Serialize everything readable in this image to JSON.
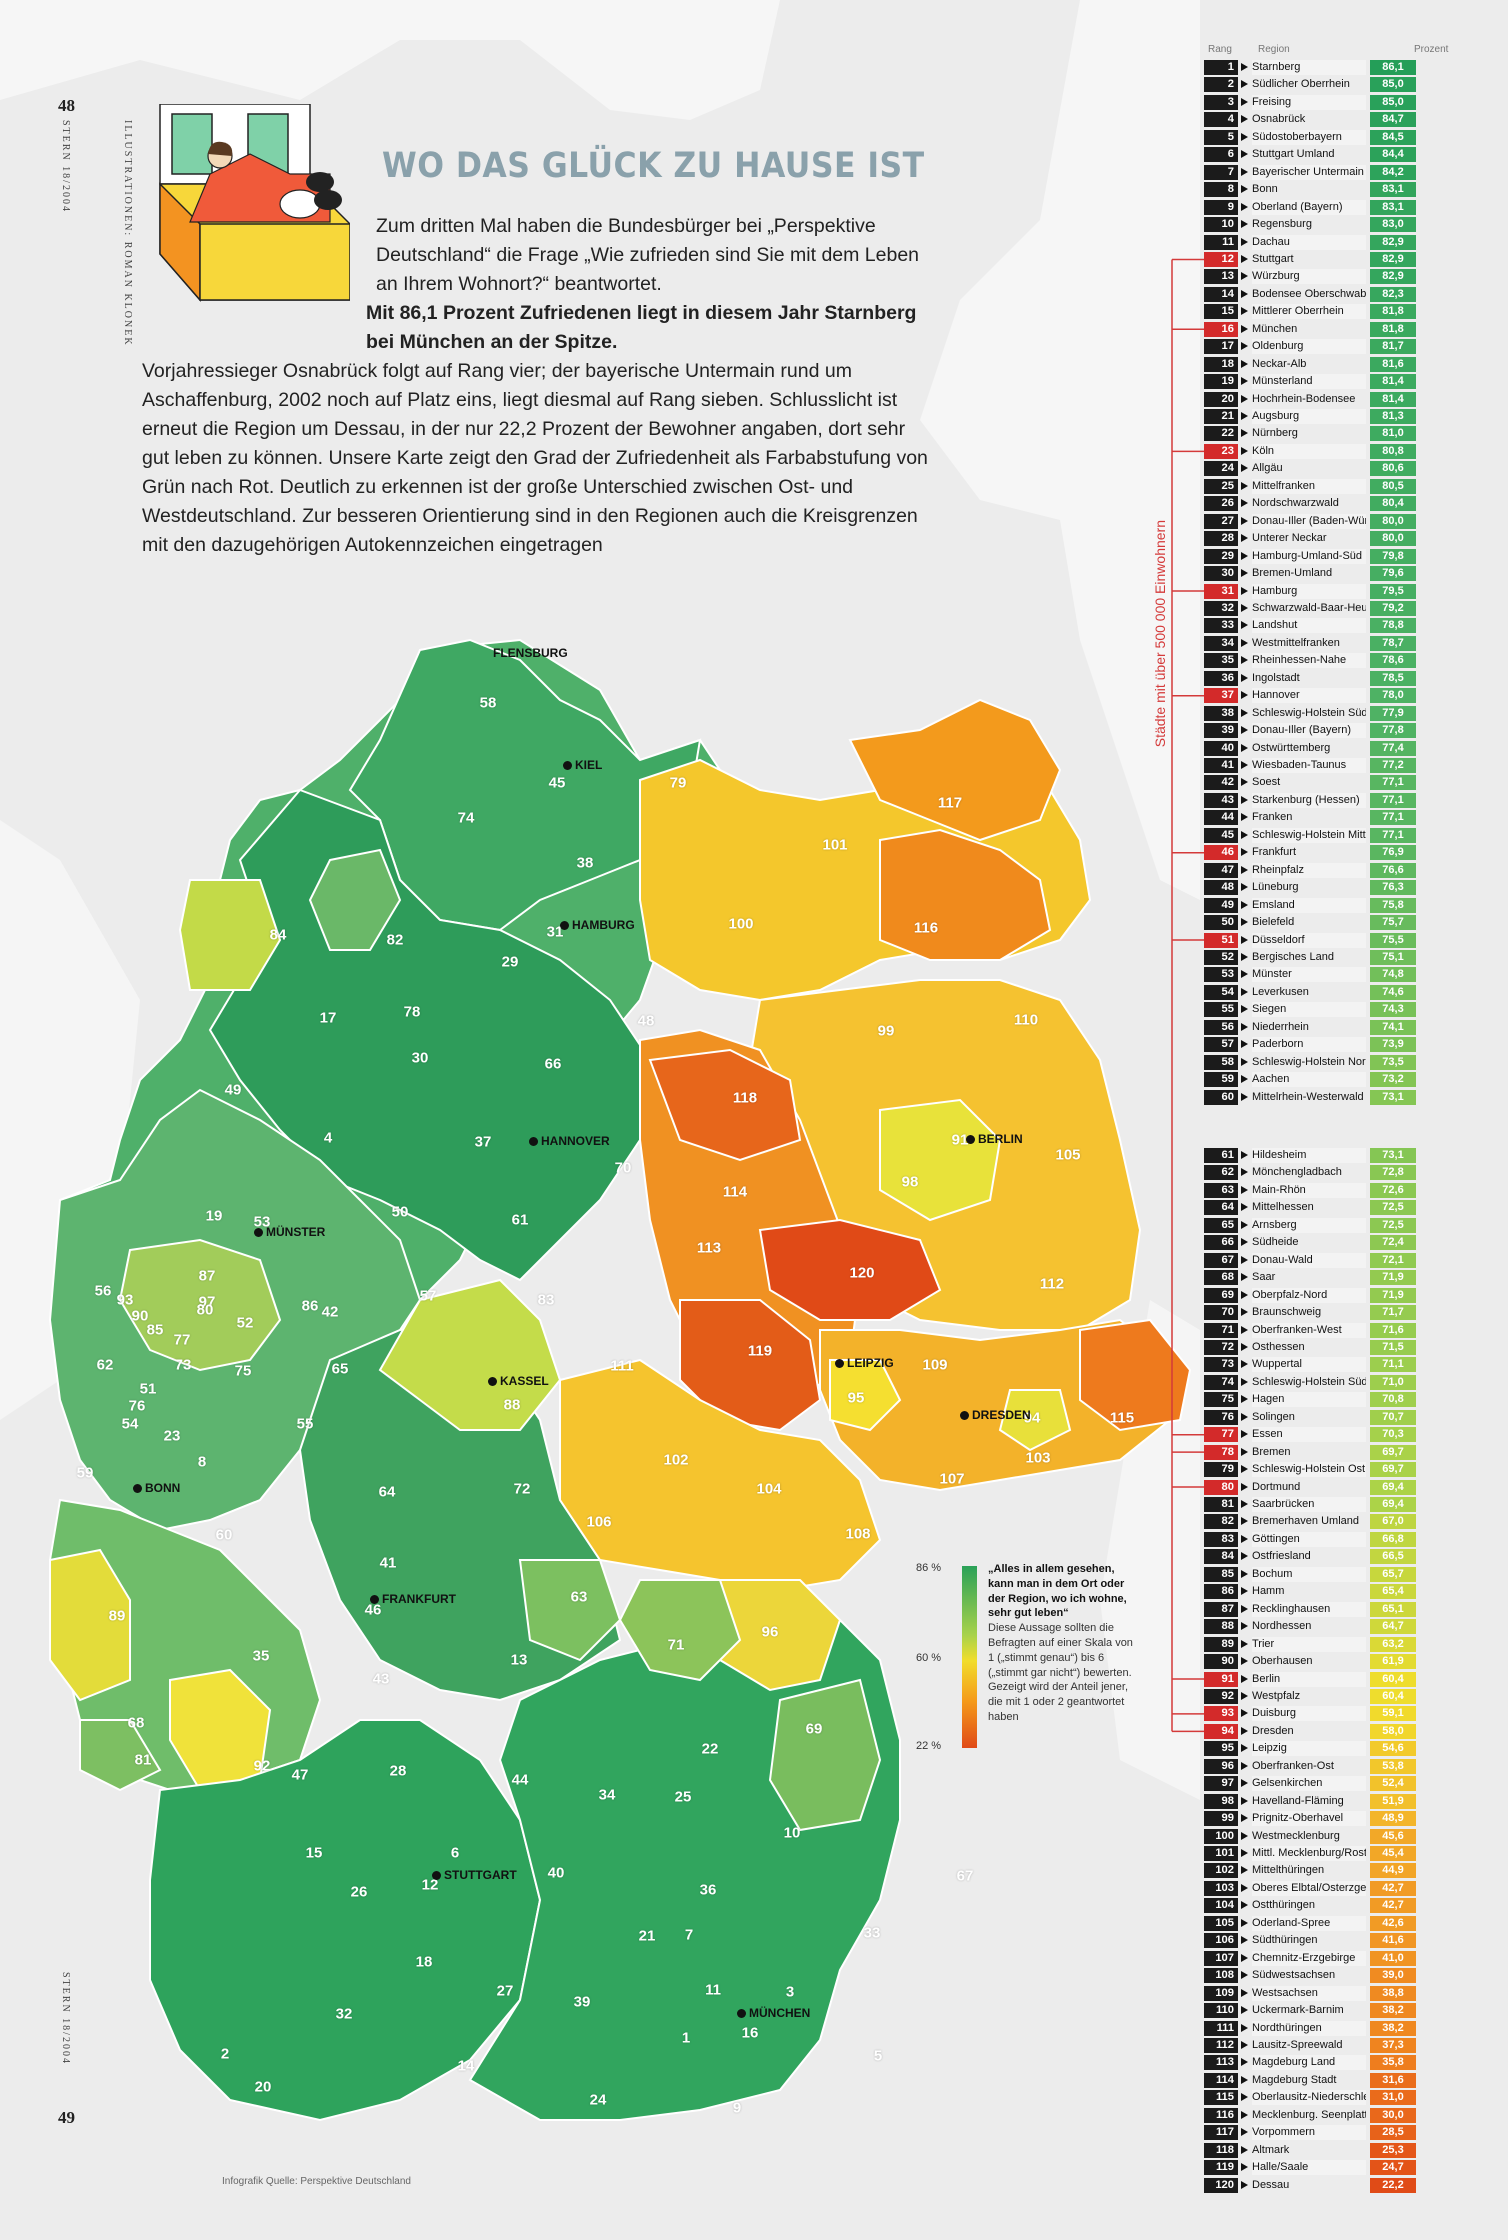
{
  "page": {
    "page_left": "48",
    "page_right": "49",
    "side_left_top": "STERN 18/2004",
    "side_illustration": "ILLUSTRATIONEN: ROMAN KLONEK",
    "side_left_bottom": "STERN 18/2004"
  },
  "title": "WO DAS GLÜCK ZU HAUSE IST",
  "intro": {
    "p1": "Zum dritten Mal haben die Bundesbürger bei „Perspektive Deutschland“ die Frage „Wie zufrieden sind Sie mit dem Leben an Ihrem Wohnort?“ beantwortet.",
    "bold": "Mit 86,1 Prozent Zufriedenen liegt in diesem Jahr Starnberg bei München an der Spitze.",
    "rest": " Vorjahressieger Osnabrück folgt auf Rang vier; der bayerische Untermain rund um Aschaffenburg, 2002 noch auf Platz eins, liegt diesmal auf Rang sieben. Schlusslicht ist erneut die Region um Dessau, in der nur 22,2 Prozent der Bewohner angaben, dort sehr gut leben zu können. Unsere Karte zeigt den Grad der Zufriedenheit als Farbabstufung von Grün nach Rot. Deutlich zu erkennen ist der große Unterschied zwischen Ost- und Westdeutschland. Zur besseren Orientierung sind in den Regionen auch die Kreisgrenzen mit den dazugehörigen Autokennzeichen eingetragen"
  },
  "table_header": {
    "rank": "Rang",
    "region": "Region",
    "percent": "Prozent"
  },
  "bracket_label": "Städte mit über 500 000 Einwohnern",
  "colors": {
    "green": "#2a9e57",
    "red": "#d32a2a",
    "title": "#8aa1ab"
  },
  "ranking": [
    {
      "r": "1",
      "n": "Starnberg",
      "p": "86,1",
      "big": false
    },
    {
      "r": "2",
      "n": "Südlicher Oberrhein",
      "p": "85,0",
      "big": false
    },
    {
      "r": "3",
      "n": "Freising",
      "p": "85,0",
      "big": false
    },
    {
      "r": "4",
      "n": "Osnabrück",
      "p": "84,7",
      "big": false
    },
    {
      "r": "5",
      "n": "Südostoberbayern",
      "p": "84,5",
      "big": false
    },
    {
      "r": "6",
      "n": "Stuttgart Umland",
      "p": "84,4",
      "big": false
    },
    {
      "r": "7",
      "n": "Bayerischer Untermain",
      "p": "84,2",
      "big": false
    },
    {
      "r": "8",
      "n": "Bonn",
      "p": "83,1",
      "big": false
    },
    {
      "r": "9",
      "n": "Oberland (Bayern)",
      "p": "83,1",
      "big": false
    },
    {
      "r": "10",
      "n": "Regensburg",
      "p": "83,0",
      "big": false
    },
    {
      "r": "11",
      "n": "Dachau",
      "p": "82,9",
      "big": false
    },
    {
      "r": "12",
      "n": "Stuttgart",
      "p": "82,9",
      "big": true
    },
    {
      "r": "13",
      "n": "Würzburg",
      "p": "82,9",
      "big": false
    },
    {
      "r": "14",
      "n": "Bodensee Oberschwaben",
      "p": "82,3",
      "big": false
    },
    {
      "r": "15",
      "n": "Mittlerer Oberrhein",
      "p": "81,8",
      "big": false
    },
    {
      "r": "16",
      "n": "München",
      "p": "81,8",
      "big": true
    },
    {
      "r": "17",
      "n": "Oldenburg",
      "p": "81,7",
      "big": false
    },
    {
      "r": "18",
      "n": "Neckar-Alb",
      "p": "81,6",
      "big": false
    },
    {
      "r": "19",
      "n": "Münsterland",
      "p": "81,4",
      "big": false
    },
    {
      "r": "20",
      "n": "Hochrhein-Bodensee",
      "p": "81,4",
      "big": false
    },
    {
      "r": "21",
      "n": "Augsburg",
      "p": "81,3",
      "big": false
    },
    {
      "r": "22",
      "n": "Nürnberg",
      "p": "81,0",
      "big": false
    },
    {
      "r": "23",
      "n": "Köln",
      "p": "80,8",
      "big": true
    },
    {
      "r": "24",
      "n": "Allgäu",
      "p": "80,6",
      "big": false
    },
    {
      "r": "25",
      "n": "Mittelfranken",
      "p": "80,5",
      "big": false
    },
    {
      "r": "26",
      "n": "Nordschwarzwald",
      "p": "80,4",
      "big": false
    },
    {
      "r": "27",
      "n": "Donau-Iller (Baden-Württ.)",
      "p": "80,0",
      "big": false
    },
    {
      "r": "28",
      "n": "Unterer Neckar",
      "p": "80,0",
      "big": false
    },
    {
      "r": "29",
      "n": "Hamburg-Umland-Süd",
      "p": "79,8",
      "big": false
    },
    {
      "r": "30",
      "n": "Bremen-Umland",
      "p": "79,6",
      "big": false
    },
    {
      "r": "31",
      "n": "Hamburg",
      "p": "79,5",
      "big": true
    },
    {
      "r": "32",
      "n": "Schwarzwald-Baar-Heuberg",
      "p": "79,2",
      "big": false
    },
    {
      "r": "33",
      "n": "Landshut",
      "p": "78,8",
      "big": false
    },
    {
      "r": "34",
      "n": "Westmittelfranken",
      "p": "78,7",
      "big": false
    },
    {
      "r": "35",
      "n": "Rheinhessen-Nahe",
      "p": "78,6",
      "big": false
    },
    {
      "r": "36",
      "n": "Ingolstadt",
      "p": "78,5",
      "big": false
    },
    {
      "r": "37",
      "n": "Hannover",
      "p": "78,0",
      "big": true
    },
    {
      "r": "38",
      "n": "Schleswig-Holstein Süd",
      "p": "77,9",
      "big": false
    },
    {
      "r": "39",
      "n": "Donau-Iller (Bayern)",
      "p": "77,8",
      "big": false
    },
    {
      "r": "40",
      "n": "Ostwürttemberg",
      "p": "77,4",
      "big": false
    },
    {
      "r": "41",
      "n": "Wiesbaden-Taunus",
      "p": "77,2",
      "big": false
    },
    {
      "r": "42",
      "n": "Soest",
      "p": "77,1",
      "big": false
    },
    {
      "r": "43",
      "n": "Starkenburg (Hessen)",
      "p": "77,1",
      "big": false
    },
    {
      "r": "44",
      "n": "Franken",
      "p": "77,1",
      "big": false
    },
    {
      "r": "45",
      "n": "Schleswig-Holstein Mitte",
      "p": "77,1",
      "big": false
    },
    {
      "r": "46",
      "n": "Frankfurt",
      "p": "76,9",
      "big": true
    },
    {
      "r": "47",
      "n": "Rheinpfalz",
      "p": "76,6",
      "big": false
    },
    {
      "r": "48",
      "n": "Lüneburg",
      "p": "76,3",
      "big": false
    },
    {
      "r": "49",
      "n": "Emsland",
      "p": "75,8",
      "big": false
    },
    {
      "r": "50",
      "n": "Bielefeld",
      "p": "75,7",
      "big": false
    },
    {
      "r": "51",
      "n": "Düsseldorf",
      "p": "75,5",
      "big": true
    },
    {
      "r": "52",
      "n": "Bergisches Land",
      "p": "75,1",
      "big": false
    },
    {
      "r": "53",
      "n": "Münster",
      "p": "74,8",
      "big": false
    },
    {
      "r": "54",
      "n": "Leverkusen",
      "p": "74,6",
      "big": false
    },
    {
      "r": "55",
      "n": "Siegen",
      "p": "74,3",
      "big": false
    },
    {
      "r": "56",
      "n": "Niederrhein",
      "p": "74,1",
      "big": false
    },
    {
      "r": "57",
      "n": "Paderborn",
      "p": "73,9",
      "big": false
    },
    {
      "r": "58",
      "n": "Schleswig-Holstein Nord",
      "p": "73,5",
      "big": false
    },
    {
      "r": "59",
      "n": "Aachen",
      "p": "73,2",
      "big": false
    },
    {
      "r": "60",
      "n": "Mittelrhein-Westerwald",
      "p": "73,1",
      "big": false
    },
    {
      "r": "61",
      "n": "Hildesheim",
      "p": "73,1",
      "big": false
    },
    {
      "r": "62",
      "n": "Mönchengladbach",
      "p": "72,8",
      "big": false
    },
    {
      "r": "63",
      "n": "Main-Rhön",
      "p": "72,6",
      "big": false
    },
    {
      "r": "64",
      "n": "Mittelhessen",
      "p": "72,5",
      "big": false
    },
    {
      "r": "65",
      "n": "Arnsberg",
      "p": "72,5",
      "big": false
    },
    {
      "r": "66",
      "n": "Südheide",
      "p": "72,4",
      "big": false
    },
    {
      "r": "67",
      "n": "Donau-Wald",
      "p": "72,1",
      "big": false
    },
    {
      "r": "68",
      "n": "Saar",
      "p": "71,9",
      "big": false
    },
    {
      "r": "69",
      "n": "Oberpfalz-Nord",
      "p": "71,9",
      "big": false
    },
    {
      "r": "70",
      "n": "Braunschweig",
      "p": "71,7",
      "big": false
    },
    {
      "r": "71",
      "n": "Oberfranken-West",
      "p": "71,6",
      "big": false
    },
    {
      "r": "72",
      "n": "Osthessen",
      "p": "71,5",
      "big": false
    },
    {
      "r": "73",
      "n": "Wuppertal",
      "p": "71,1",
      "big": false
    },
    {
      "r": "74",
      "n": "Schleswig-Holstein Süd-W.",
      "p": "71,0",
      "big": false
    },
    {
      "r": "75",
      "n": "Hagen",
      "p": "70,8",
      "big": false
    },
    {
      "r": "76",
      "n": "Solingen",
      "p": "70,7",
      "big": false
    },
    {
      "r": "77",
      "n": "Essen",
      "p": "70,3",
      "big": true
    },
    {
      "r": "78",
      "n": "Bremen",
      "p": "69,7",
      "big": true
    },
    {
      "r": "79",
      "n": "Schleswig-Holstein Ost",
      "p": "69,7",
      "big": false
    },
    {
      "r": "80",
      "n": "Dortmund",
      "p": "69,4",
      "big": true
    },
    {
      "r": "81",
      "n": "Saarbrücken",
      "p": "69,4",
      "big": false
    },
    {
      "r": "82",
      "n": "Bremerhaven Umland",
      "p": "67,0",
      "big": false
    },
    {
      "r": "83",
      "n": "Göttingen",
      "p": "66,8",
      "big": false
    },
    {
      "r": "84",
      "n": "Ostfriesland",
      "p": "66,5",
      "big": false
    },
    {
      "r": "85",
      "n": "Bochum",
      "p": "65,7",
      "big": false
    },
    {
      "r": "86",
      "n": "Hamm",
      "p": "65,4",
      "big": false
    },
    {
      "r": "87",
      "n": "Recklinghausen",
      "p": "65,1",
      "big": false
    },
    {
      "r": "88",
      "n": "Nordhessen",
      "p": "64,7",
      "big": false
    },
    {
      "r": "89",
      "n": "Trier",
      "p": "63,2",
      "big": false
    },
    {
      "r": "90",
      "n": "Oberhausen",
      "p": "61,9",
      "big": false
    },
    {
      "r": "91",
      "n": "Berlin",
      "p": "60,4",
      "big": true
    },
    {
      "r": "92",
      "n": "Westpfalz",
      "p": "60,4",
      "big": false
    },
    {
      "r": "93",
      "n": "Duisburg",
      "p": "59,1",
      "big": true
    },
    {
      "r": "94",
      "n": "Dresden",
      "p": "58,0",
      "big": true
    },
    {
      "r": "95",
      "n": "Leipzig",
      "p": "54,6",
      "big": false
    },
    {
      "r": "96",
      "n": "Oberfranken-Ost",
      "p": "53,8",
      "big": false
    },
    {
      "r": "97",
      "n": "Gelsenkirchen",
      "p": "52,4",
      "big": false
    },
    {
      "r": "98",
      "n": "Havelland-Fläming",
      "p": "51,9",
      "big": false
    },
    {
      "r": "99",
      "n": "Prignitz-Oberhavel",
      "p": "48,9",
      "big": false
    },
    {
      "r": "100",
      "n": "Westmecklenburg",
      "p": "45,6",
      "big": false
    },
    {
      "r": "101",
      "n": "Mittl. Mecklenburg/Rostock",
      "p": "45,4",
      "big": false
    },
    {
      "r": "102",
      "n": "Mittelthüringen",
      "p": "44,9",
      "big": false
    },
    {
      "r": "103",
      "n": "Oberes Elbtal/Osterzgebirge",
      "p": "42,7",
      "big": false
    },
    {
      "r": "104",
      "n": "Ostthüringen",
      "p": "42,7",
      "big": false
    },
    {
      "r": "105",
      "n": "Oderland-Spree",
      "p": "42,6",
      "big": false
    },
    {
      "r": "106",
      "n": "Südthüringen",
      "p": "41,6",
      "big": false
    },
    {
      "r": "107",
      "n": "Chemnitz-Erzgebirge",
      "p": "41,0",
      "big": false
    },
    {
      "r": "108",
      "n": "Südwestsachsen",
      "p": "39,0",
      "big": false
    },
    {
      "r": "109",
      "n": "Westsachsen",
      "p": "38,8",
      "big": false
    },
    {
      "r": "110",
      "n": "Uckermark-Barnim",
      "p": "38,2",
      "big": false
    },
    {
      "r": "111",
      "n": "Nordthüringen",
      "p": "38,2",
      "big": false
    },
    {
      "r": "112",
      "n": "Lausitz-Spreewald",
      "p": "37,3",
      "big": false
    },
    {
      "r": "113",
      "n": "Magdeburg Land",
      "p": "35,8",
      "big": false
    },
    {
      "r": "114",
      "n": "Magdeburg Stadt",
      "p": "31,6",
      "big": false
    },
    {
      "r": "115",
      "n": "Oberlausitz-Niederschlesien",
      "p": "31,0",
      "big": false
    },
    {
      "r": "116",
      "n": "Mecklenburg. Seenplatte",
      "p": "30,0",
      "big": false
    },
    {
      "r": "117",
      "n": "Vorpommern",
      "p": "28,5",
      "big": false
    },
    {
      "r": "118",
      "n": "Altmark",
      "p": "25,3",
      "big": false
    },
    {
      "r": "119",
      "n": "Halle/Saale",
      "p": "24,7",
      "big": false
    },
    {
      "r": "120",
      "n": "Dessau",
      "p": "22,2",
      "big": false
    }
  ],
  "legend": {
    "tick_top": "86 %",
    "tick_mid": "60 %",
    "tick_bottom": "22 %",
    "question": "„Alles in allem gesehen, kann man in dem Ort oder der Region, wo ich wohne, sehr gut leben“",
    "note": "Diese Aussage sollten die Befragten auf einer Skala von 1 („stimmt genau“) bis 6 („stimmt gar nicht“) bewerten. Gezeigt wird der Anteil jener, die mit 1 oder 2 geantwortet haben"
  },
  "credit": "Infografik   Quelle: Perspektive Deutschland",
  "cities": [
    {
      "name": "FLENSBURG",
      "dot": false
    },
    {
      "name": "KIEL",
      "dot": true
    },
    {
      "name": "HAMBURG",
      "dot": true
    },
    {
      "name": "HANNOVER",
      "dot": true
    },
    {
      "name": "BERLIN",
      "dot": true
    },
    {
      "name": "MÜNSTER",
      "dot": true
    },
    {
      "name": "KASSEL",
      "dot": true
    },
    {
      "name": "LEIPZIG",
      "dot": true
    },
    {
      "name": "DRESDEN",
      "dot": true
    },
    {
      "name": "BONN",
      "dot": true
    },
    {
      "name": "FRANKFURT",
      "dot": true
    },
    {
      "name": "STUTTGART",
      "dot": true
    },
    {
      "name": "MÜNCHEN",
      "dot": true
    }
  ],
  "map_regions": [
    "58",
    "45",
    "79",
    "74",
    "38",
    "31",
    "82",
    "84",
    "78",
    "17",
    "30",
    "29",
    "48",
    "66",
    "49",
    "4",
    "37",
    "70",
    "19",
    "53",
    "50",
    "61",
    "56",
    "87",
    "97",
    "77",
    "42",
    "57",
    "83",
    "86",
    "62",
    "73",
    "75",
    "54",
    "23",
    "65",
    "88",
    "55",
    "59",
    "8",
    "64",
    "72",
    "60",
    "41",
    "46",
    "63",
    "71",
    "89",
    "35",
    "43",
    "13",
    "68",
    "81",
    "92",
    "47",
    "28",
    "44",
    "34",
    "22",
    "25",
    "69",
    "10",
    "15",
    "12",
    "6",
    "26",
    "40",
    "36",
    "67",
    "33",
    "18",
    "32",
    "27",
    "39",
    "21",
    "11",
    "16",
    "3",
    "1",
    "5",
    "7",
    "14",
    "20",
    "24",
    "9",
    "2",
    "117",
    "101",
    "100",
    "116",
    "99",
    "110",
    "118",
    "105",
    "98",
    "114",
    "91",
    "113",
    "120",
    "112",
    "119",
    "111",
    "109",
    "115",
    "95",
    "94",
    "102",
    "104",
    "103",
    "106",
    "107",
    "108",
    "96",
    "52",
    "76",
    "80",
    "85",
    "90",
    "93",
    "51"
  ]
}
